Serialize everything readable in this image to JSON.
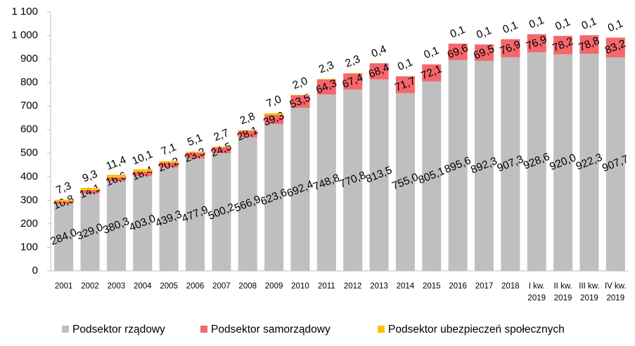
{
  "chart_data": {
    "type": "stacked_bar",
    "categories": [
      "2001",
      "2002",
      "2003",
      "2004",
      "2005",
      "2006",
      "2007",
      "2008",
      "2009",
      "2010",
      "2011",
      "2012",
      "2013",
      "2014",
      "2015",
      "2016",
      "2017",
      "2018",
      "I kw. 2019",
      "II kw. 2019",
      "III kw. 2019",
      "IV kw. 2019"
    ],
    "series": [
      {
        "name": "Podsektor rządowy",
        "color": "#bfbfbf",
        "values": [
          284.0,
          329.0,
          380.3,
          403.0,
          439.3,
          477.9,
          500.2,
          566.9,
          623.6,
          692.4,
          748.8,
          770.8,
          813.5,
          755.0,
          805.1,
          895.6,
          892.3,
          907.3,
          928.6,
          920.0,
          922.3,
          907.7
        ],
        "value_labels": [
          "284,0",
          "329,0",
          "380,3",
          "403,0",
          "439,3",
          "477,9",
          "500,2",
          "566,9",
          "623,6",
          "692,4",
          "748,8",
          "770,8",
          "813,5",
          "755,0",
          "805,1",
          "895,6",
          "892,3",
          "907,3",
          "928,6",
          "920,0",
          "922,3",
          "907,7"
        ]
      },
      {
        "name": "Podsektor samorządowy",
        "color": "#f4676b",
        "values": [
          10.8,
          14.1,
          16.6,
          18.4,
          20.2,
          23.3,
          24.5,
          28.1,
          39.3,
          53.5,
          64.3,
          67.4,
          68.4,
          71.7,
          72.1,
          69.6,
          69.5,
          76.9,
          76.9,
          78.2,
          78.8,
          83.2
        ],
        "value_labels": [
          "10,8",
          "14,1",
          "16,6",
          "18,4",
          "20,2",
          "23,3",
          "24,5",
          "28,1",
          "39,3",
          "53,5",
          "64,3",
          "67,4",
          "68,4",
          "71,7",
          "72,1",
          "69,6",
          "69,5",
          "76,9",
          "76,9",
          "78,2",
          "78,8",
          "83,2"
        ]
      },
      {
        "name": "Podsektor ubezpieczeń społecznych",
        "color": "#ffc000",
        "values": [
          7.3,
          9.3,
          11.4,
          10.1,
          7.1,
          5.1,
          2.7,
          2.8,
          7.0,
          2.0,
          2.3,
          2.3,
          0.4,
          0.1,
          0.1,
          0.1,
          0.1,
          0.1,
          0.1,
          0.1,
          0.1,
          0.1
        ],
        "value_labels": [
          "7,3",
          "9,3",
          "11,4",
          "10,1",
          "7,1",
          "5,1",
          "2,7",
          "2,8",
          "7,0",
          "2,0",
          "2,3",
          "2,3",
          "0,4",
          "0,1",
          "0,1",
          "0,1",
          "0,1",
          "0,1",
          "0,1",
          "0,1",
          "0,1",
          "0,1"
        ]
      }
    ],
    "ylim": [
      0,
      1100
    ],
    "yticks": [
      0,
      100,
      200,
      300,
      400,
      500,
      600,
      700,
      800,
      900,
      {
        "value": 1000,
        "label": "1 000"
      },
      {
        "value": 1100,
        "label": "1 100"
      }
    ],
    "grid": false,
    "legend": "bottom"
  }
}
